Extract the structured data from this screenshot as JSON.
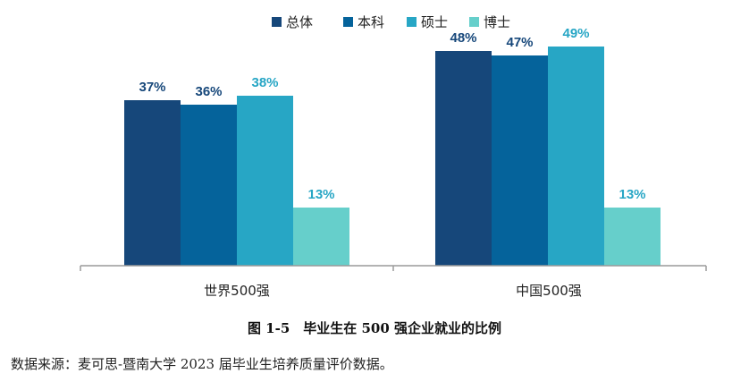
{
  "chart_data": {
    "type": "bar",
    "categories": [
      "世界500强",
      "中国500强"
    ],
    "series": [
      {
        "name": "总体",
        "values": [
          37,
          48
        ],
        "color": "#16477a"
      },
      {
        "name": "本科",
        "values": [
          36,
          47
        ],
        "color": "#05639b"
      },
      {
        "name": "硕士",
        "values": [
          38,
          49
        ],
        "color": "#27a6c5"
      },
      {
        "name": "博士",
        "values": [
          13,
          13
        ],
        "color": "#66cfcb"
      }
    ],
    "value_suffix": "%",
    "ylim": [
      0,
      50
    ],
    "grid": false,
    "legend": "top-center"
  },
  "caption": "图 1-5　毕业生在 500 强企业就业的比例",
  "source": "数据来源：麦可思-暨南大学 2023 届毕业生培养质量评价数据。"
}
